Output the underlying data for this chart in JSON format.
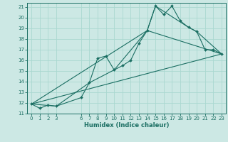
{
  "xlabel": "Humidex (Indice chaleur)",
  "bg_color": "#cce8e4",
  "grid_color": "#aad8d0",
  "line_color": "#1a6e62",
  "xlim": [
    -0.5,
    23.5
  ],
  "ylim": [
    11,
    21.4
  ],
  "x_ticks": [
    0,
    1,
    2,
    3,
    6,
    7,
    8,
    9,
    10,
    11,
    12,
    13,
    14,
    15,
    16,
    17,
    18,
    19,
    20,
    21,
    22,
    23
  ],
  "yticks": [
    11,
    12,
    13,
    14,
    15,
    16,
    17,
    18,
    19,
    20,
    21
  ],
  "series1_x": [
    0,
    1,
    2,
    3,
    6,
    7,
    8,
    9,
    10,
    11,
    12,
    13,
    14,
    15,
    16,
    17,
    18,
    19,
    20,
    21,
    22,
    23
  ],
  "series1_y": [
    11.9,
    11.5,
    11.8,
    11.7,
    12.5,
    13.9,
    16.2,
    16.4,
    15.1,
    15.5,
    16.0,
    17.6,
    18.8,
    21.1,
    20.3,
    21.1,
    19.7,
    19.1,
    18.7,
    17.0,
    17.0,
    16.6
  ],
  "series2_x": [
    0,
    3,
    7,
    10,
    14,
    15,
    19,
    20,
    23
  ],
  "series2_y": [
    11.9,
    11.7,
    13.9,
    15.1,
    18.8,
    21.1,
    19.1,
    18.7,
    16.6
  ],
  "series3_x": [
    0,
    23
  ],
  "series3_y": [
    11.9,
    16.6
  ],
  "series4_x": [
    0,
    14,
    23
  ],
  "series4_y": [
    11.9,
    18.8,
    16.6
  ]
}
